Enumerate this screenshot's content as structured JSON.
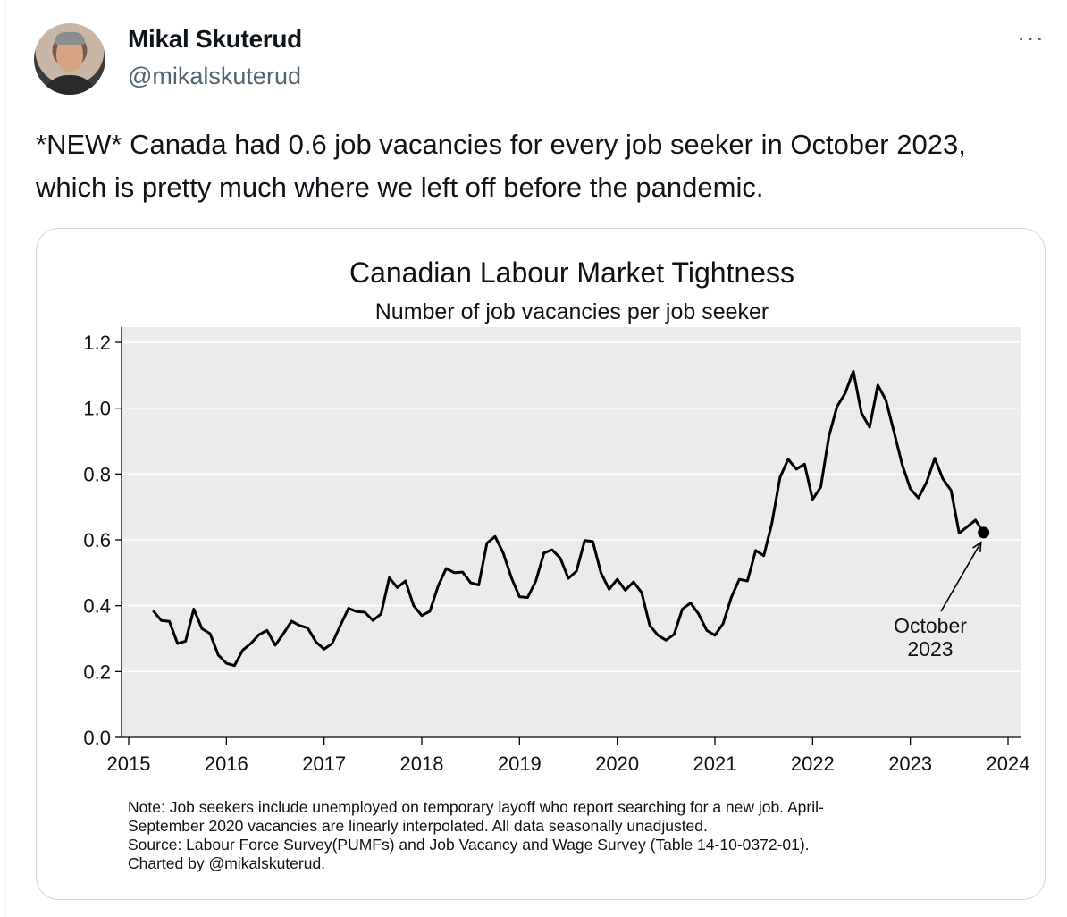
{
  "tweet": {
    "author_name": "Mikal Skuterud",
    "handle": "@mikalskuterud",
    "more_label": "···",
    "text": "*NEW* Canada had 0.6 job vacancies for every job seeker in October 2023, which is pretty much where we left off before the pandemic."
  },
  "chart_data": {
    "type": "line",
    "title": "Canadian Labour Market Tightness",
    "subtitle": "Number of job vacancies per job seeker",
    "xlabel": "",
    "ylabel": "",
    "xlim": [
      2015,
      2024
    ],
    "ylim": [
      0,
      1.2
    ],
    "x_ticks": [
      "2015",
      "2016",
      "2017",
      "2018",
      "2019",
      "2020",
      "2021",
      "2022",
      "2023",
      "2024"
    ],
    "y_ticks": [
      "0.0",
      "0.2",
      "0.4",
      "0.6",
      "0.8",
      "1.0",
      "1.2"
    ],
    "grid": true,
    "series": [
      {
        "name": "Vacancies per job seeker",
        "x": [
          2015.25,
          2015.333,
          2015.417,
          2015.5,
          2015.583,
          2015.667,
          2015.75,
          2015.833,
          2015.917,
          2016.0,
          2016.083,
          2016.167,
          2016.25,
          2016.333,
          2016.417,
          2016.5,
          2016.583,
          2016.667,
          2016.75,
          2016.833,
          2016.917,
          2017.0,
          2017.083,
          2017.167,
          2017.25,
          2017.333,
          2017.417,
          2017.5,
          2017.583,
          2017.667,
          2017.75,
          2017.833,
          2017.917,
          2018.0,
          2018.083,
          2018.167,
          2018.25,
          2018.333,
          2018.417,
          2018.5,
          2018.583,
          2018.667,
          2018.75,
          2018.833,
          2018.917,
          2019.0,
          2019.083,
          2019.167,
          2019.25,
          2019.333,
          2019.417,
          2019.5,
          2019.583,
          2019.667,
          2019.75,
          2019.833,
          2019.917,
          2020.0,
          2020.083,
          2020.167,
          2020.25,
          2020.333,
          2020.417,
          2020.5,
          2020.583,
          2020.667,
          2020.75,
          2020.833,
          2020.917,
          2021.0,
          2021.083,
          2021.167,
          2021.25,
          2021.333,
          2021.417,
          2021.5,
          2021.583,
          2021.667,
          2021.75,
          2021.833,
          2021.917,
          2022.0,
          2022.083,
          2022.167,
          2022.25,
          2022.333,
          2022.417,
          2022.5,
          2022.583,
          2022.667,
          2022.75,
          2022.833,
          2022.917,
          2023.0,
          2023.083,
          2023.167,
          2023.25,
          2023.333,
          2023.417,
          2023.5,
          2023.583,
          2023.667,
          2023.75
        ],
        "values": [
          0.385,
          0.355,
          0.352,
          0.285,
          0.292,
          0.39,
          0.33,
          0.315,
          0.25,
          0.225,
          0.218,
          0.265,
          0.285,
          0.312,
          0.325,
          0.28,
          0.315,
          0.353,
          0.34,
          0.332,
          0.29,
          0.268,
          0.285,
          0.34,
          0.392,
          0.382,
          0.38,
          0.355,
          0.375,
          0.485,
          0.455,
          0.475,
          0.4,
          0.37,
          0.383,
          0.46,
          0.513,
          0.5,
          0.502,
          0.47,
          0.463,
          0.59,
          0.61,
          0.56,
          0.485,
          0.427,
          0.425,
          0.475,
          0.56,
          0.57,
          0.545,
          0.483,
          0.505,
          0.598,
          0.595,
          0.5,
          0.45,
          0.48,
          0.447,
          0.472,
          0.44,
          0.34,
          0.31,
          0.295,
          0.313,
          0.39,
          0.408,
          0.375,
          0.325,
          0.31,
          0.345,
          0.425,
          0.48,
          0.475,
          0.568,
          0.552,
          0.65,
          0.79,
          0.845,
          0.815,
          0.83,
          0.723,
          0.76,
          0.915,
          1.005,
          1.045,
          1.112,
          0.985,
          0.942,
          1.07,
          1.025,
          0.928,
          0.828,
          0.755,
          0.727,
          0.775,
          0.848,
          0.785,
          0.75,
          0.62,
          0.64,
          0.66,
          0.622
        ]
      }
    ],
    "highlight": {
      "x": 2023.75,
      "value": 0.622,
      "label_line1": "October",
      "label_line2": "2023"
    },
    "note": [
      "Note: Job seekers include unemployed on temporary layoff who report searching for a new job. April-",
      "September 2020 vacancies are linearly interpolated. All data seasonally unadjusted.",
      "Source: Labour Force Survey(PUMFs) and Job Vacancy and Wage Survey (Table 14-10-0372-01).",
      "Charted by @mikalskuterud."
    ],
    "colors": {
      "plot_bg": "#ebebeb",
      "grid": "#ffffff",
      "line": "#000000"
    }
  }
}
